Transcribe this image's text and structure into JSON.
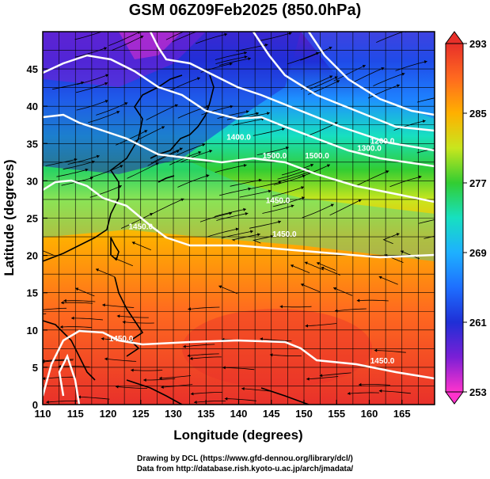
{
  "title": "GSM 06Z09Feb2025 (850.0hPa)",
  "footer": {
    "line1": "Drawing by DCL (https://www.gfd-dennou.org/library/dcl/)",
    "line2": "Data from http://database.rish.kyoto-u.ac.jp/arch/jmadata/"
  },
  "chart_data": {
    "type": "heatmap",
    "title": "GSM 06Z09Feb2025 (850.0hPa)",
    "xlabel": "Longitude (degrees)",
    "ylabel": "Latitude  (degrees)",
    "xlim": [
      110,
      170
    ],
    "ylim": [
      0,
      50
    ],
    "x_ticks": [
      "110",
      "115",
      "120",
      "125",
      "130",
      "135",
      "140",
      "145",
      "150",
      "155",
      "160",
      "165"
    ],
    "y_ticks": [
      "0",
      "5",
      "10",
      "15",
      "20",
      "25",
      "30",
      "35",
      "40",
      "45"
    ],
    "colorbar": {
      "min": 253,
      "max": 293,
      "labels": [
        "253",
        "261",
        "269",
        "277",
        "285",
        "293"
      ],
      "colors": [
        "#ff33cc",
        "#7a1fd6",
        "#1f2fd6",
        "#1e90ff",
        "#17e0e0",
        "#1ee09a",
        "#32cd32",
        "#c8e61e",
        "#ffd700",
        "#ff8c00",
        "#ff5a1f",
        "#e8302a"
      ]
    },
    "contour_labels": [
      {
        "text": "1200.0",
        "lon": 162,
        "lat": 35
      },
      {
        "text": "1300.0",
        "lon": 160,
        "lat": 34
      },
      {
        "text": "1400.0",
        "lon": 140,
        "lat": 35.5
      },
      {
        "text": "1500.0",
        "lon": 145.5,
        "lat": 33
      },
      {
        "text": "1500.0",
        "lon": 152,
        "lat": 33
      },
      {
        "text": "1450.0",
        "lon": 146,
        "lat": 27
      },
      {
        "text": "1450.0",
        "lon": 147,
        "lat": 22.5
      },
      {
        "text": "1450.0",
        "lon": 125,
        "lat": 23.5
      },
      {
        "text": "1450.0",
        "lon": 122,
        "lat": 8.5
      },
      {
        "text": "1450.0",
        "lon": 162,
        "lat": 5.5
      }
    ]
  }
}
